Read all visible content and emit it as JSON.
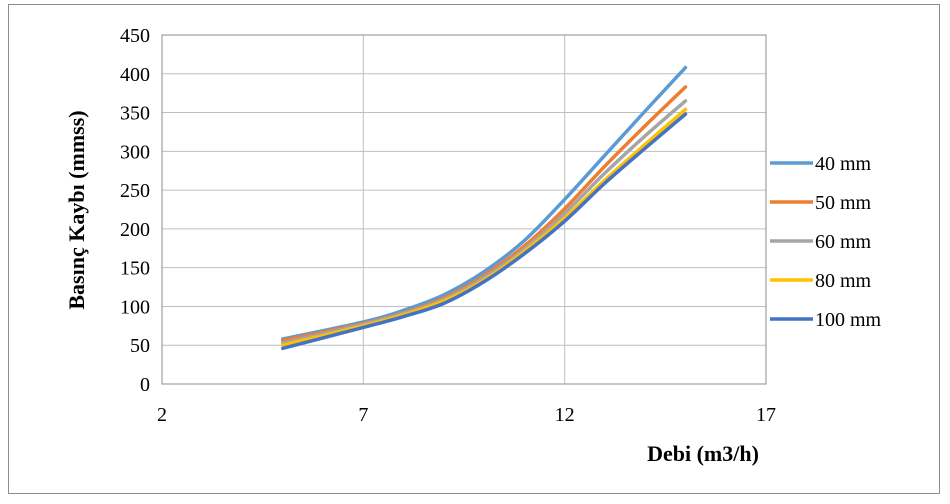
{
  "chart_data": {
    "type": "line",
    "xlabel": "Debi (m3/h)",
    "ylabel": "Basınç Kaybı (mmss)",
    "xlim": [
      2,
      17
    ],
    "ylim": [
      0,
      450
    ],
    "xticks": [
      2,
      7,
      12,
      17
    ],
    "yticks": [
      0,
      50,
      100,
      150,
      200,
      250,
      300,
      350,
      400,
      450
    ],
    "grid": true,
    "legend_position": "right",
    "x": [
      5,
      7,
      8,
      9,
      10,
      11,
      12,
      13,
      14,
      15
    ],
    "series": [
      {
        "name": "40 mm",
        "color": "#5b9bd5",
        "values": [
          58,
          80,
          95,
          115,
          145,
          185,
          238,
          295,
          352,
          408
        ]
      },
      {
        "name": "50 mm",
        "color": "#ed7d31",
        "values": [
          56,
          78,
          92,
          111,
          140,
          178,
          226,
          281,
          333,
          383
        ]
      },
      {
        "name": "60 mm",
        "color": "#a5a5a5",
        "values": [
          53,
          77,
          91,
          109,
          137,
          174,
          220,
          272,
          320,
          365
        ]
      },
      {
        "name": "80 mm",
        "color": "#ffc000",
        "values": [
          50,
          75,
          89,
          107,
          134,
          171,
          214,
          263,
          309,
          354
        ]
      },
      {
        "name": "100 mm",
        "color": "#4472c4",
        "values": [
          46,
          73,
          87,
          104,
          132,
          168,
          210,
          259,
          304,
          348
        ]
      }
    ]
  }
}
